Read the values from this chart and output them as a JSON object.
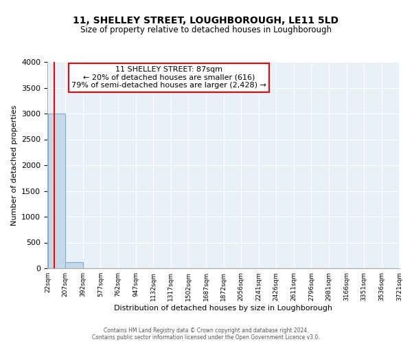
{
  "title": "11, SHELLEY STREET, LOUGHBOROUGH, LE11 5LD",
  "subtitle": "Size of property relative to detached houses in Loughborough",
  "xlabel": "Distribution of detached houses by size in Loughborough",
  "ylabel": "Number of detached properties",
  "bar_color": "#c5d8ea",
  "bar_edge_color": "#7bafd4",
  "annotation_line1": "11 SHELLEY STREET: 87sqm",
  "annotation_line2": "← 20% of detached houses are smaller (616)",
  "annotation_line3": "79% of semi-detached houses are larger (2,428) →",
  "annotation_box_color": "white",
  "annotation_box_edge_color": "red",
  "property_size": 87,
  "bin_edges": [
    22,
    207,
    392,
    577,
    762,
    947,
    1132,
    1317,
    1502,
    1687,
    1872,
    2056,
    2241,
    2426,
    2611,
    2796,
    2981,
    3166,
    3351,
    3536,
    3721
  ],
  "bar_heights": [
    3000,
    115,
    0,
    0,
    0,
    0,
    0,
    0,
    0,
    0,
    0,
    0,
    0,
    0,
    0,
    0,
    0,
    0,
    0,
    0
  ],
  "bar_labels": [
    "22sqm",
    "207sqm",
    "392sqm",
    "577sqm",
    "762sqm",
    "947sqm",
    "1132sqm",
    "1317sqm",
    "1502sqm",
    "1687sqm",
    "1872sqm",
    "2056sqm",
    "2241sqm",
    "2426sqm",
    "2611sqm",
    "2796sqm",
    "2981sqm",
    "3166sqm",
    "3351sqm",
    "3536sqm",
    "3721sqm"
  ],
  "ylim": [
    0,
    4000
  ],
  "yticks": [
    0,
    500,
    1000,
    1500,
    2000,
    2500,
    3000,
    3500,
    4000
  ],
  "background_color": "#e8f0f8",
  "footer_line1": "Contains HM Land Registry data © Crown copyright and database right 2024.",
  "footer_line2": "Contains public sector information licensed under the Open Government Licence v3.0."
}
